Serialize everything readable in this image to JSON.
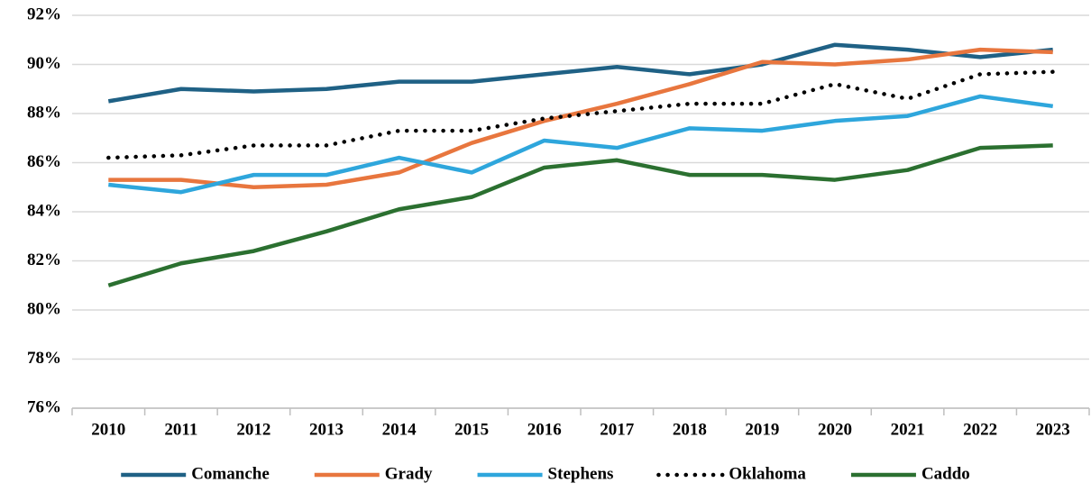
{
  "chart_data": {
    "type": "line",
    "categories": [
      "2010",
      "2011",
      "2012",
      "2013",
      "2014",
      "2015",
      "2016",
      "2017",
      "2018",
      "2019",
      "2020",
      "2021",
      "2022",
      "2023"
    ],
    "series": [
      {
        "name": "Comanche",
        "color": "#1f6185",
        "values": [
          88.5,
          89.0,
          88.9,
          89.0,
          89.3,
          89.3,
          89.6,
          89.9,
          89.6,
          90.0,
          90.8,
          90.6,
          90.3,
          90.6
        ]
      },
      {
        "name": "Grady",
        "color": "#e8763e",
        "values": [
          85.3,
          85.3,
          85.0,
          85.1,
          85.6,
          86.8,
          87.7,
          88.4,
          89.2,
          90.1,
          90.0,
          90.2,
          90.6,
          90.5
        ]
      },
      {
        "name": "Stephens",
        "color": "#2ea6dc",
        "values": [
          85.1,
          84.8,
          85.5,
          85.5,
          86.2,
          85.6,
          86.9,
          86.6,
          87.4,
          87.3,
          87.7,
          87.9,
          88.7,
          88.3
        ]
      },
      {
        "name": "Oklahoma",
        "color": "#000000",
        "dash": "dotted",
        "values": [
          86.2,
          86.3,
          86.7,
          86.7,
          87.3,
          87.3,
          87.8,
          88.1,
          88.4,
          88.4,
          89.2,
          88.6,
          89.6,
          89.7
        ]
      },
      {
        "name": "Caddo",
        "color": "#2b7030",
        "values": [
          81.0,
          81.9,
          82.4,
          83.2,
          84.1,
          84.6,
          85.8,
          86.1,
          85.5,
          85.5,
          85.3,
          85.7,
          86.6,
          86.7
        ]
      }
    ],
    "ylim": [
      76,
      92
    ],
    "yticks": [
      {
        "value": 76,
        "label": "76%"
      },
      {
        "value": 78,
        "label": "78%"
      },
      {
        "value": 80,
        "label": "80%"
      },
      {
        "value": 82,
        "label": "82%"
      },
      {
        "value": 84,
        "label": "84%"
      },
      {
        "value": 86,
        "label": "86%"
      },
      {
        "value": 88,
        "label": "88%"
      },
      {
        "value": 90,
        "label": "90%"
      },
      {
        "value": 92,
        "label": "92%"
      }
    ],
    "grid": true,
    "legend": "bottom"
  }
}
